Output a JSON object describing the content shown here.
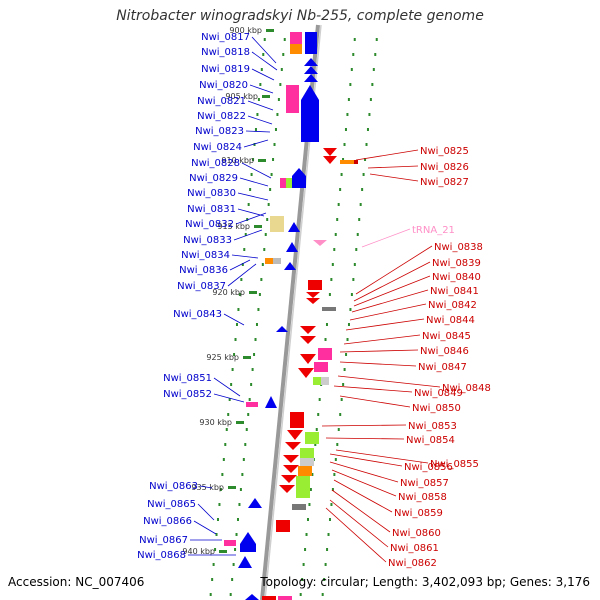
{
  "title": "Nitrobacter winogradskyi Nb-255, complete genome",
  "footer": {
    "accession": "Accession: NC_007406",
    "summary": "Topology: circular; Length: 3,402,093 bp; Genes: 3,176"
  },
  "colors": {
    "left_labels": "#0000cc",
    "right_labels": "#cc0000",
    "trna": "#ff8fc7",
    "kbp_ticks": "#2d8a2d",
    "backbone": "#999999"
  },
  "scale_ticks": [
    {
      "label": "900 kbp"
    },
    {
      "label": "905 kbp"
    },
    {
      "label": "910 kbp"
    },
    {
      "label": "915 kbp"
    },
    {
      "label": "920 kbp"
    },
    {
      "label": "925 kbp"
    },
    {
      "label": "930 kbp"
    },
    {
      "label": "935 kbp"
    },
    {
      "label": "940 kbp"
    }
  ],
  "left_genes": [
    "Nwi_0817",
    "Nwi_0818",
    "Nwi_0819",
    "Nwi_0820",
    "Nwi_0821",
    "Nwi_0822",
    "Nwi_0823",
    "Nwi_0824",
    "Nwi_0828",
    "Nwi_0829",
    "Nwi_0830",
    "Nwi_0831",
    "Nwi_0832",
    "Nwi_0833",
    "Nwi_0834",
    "Nwi_0836",
    "Nwi_0837",
    "Nwi_0843",
    "Nwi_0851",
    "Nwi_0852",
    "Nwi_0863",
    "Nwi_0865",
    "Nwi_0866",
    "Nwi_0867",
    "Nwi_0868"
  ],
  "right_genes": [
    "Nwi_0825",
    "Nwi_0826",
    "Nwi_0827",
    "tRNA_21",
    "Nwi_0838",
    "Nwi_0839",
    "Nwi_0840",
    "Nwi_0841",
    "Nwi_0842",
    "Nwi_0844",
    "Nwi_0845",
    "Nwi_0846",
    "Nwi_0847",
    "Nwi_0848",
    "Nwi_0849",
    "Nwi_0850",
    "Nwi_0853",
    "Nwi_0854",
    "Nwi_0855",
    "Nwi_0856",
    "Nwi_0857",
    "Nwi_0858",
    "Nwi_0859",
    "Nwi_0860",
    "Nwi_0861",
    "Nwi_0862"
  ]
}
